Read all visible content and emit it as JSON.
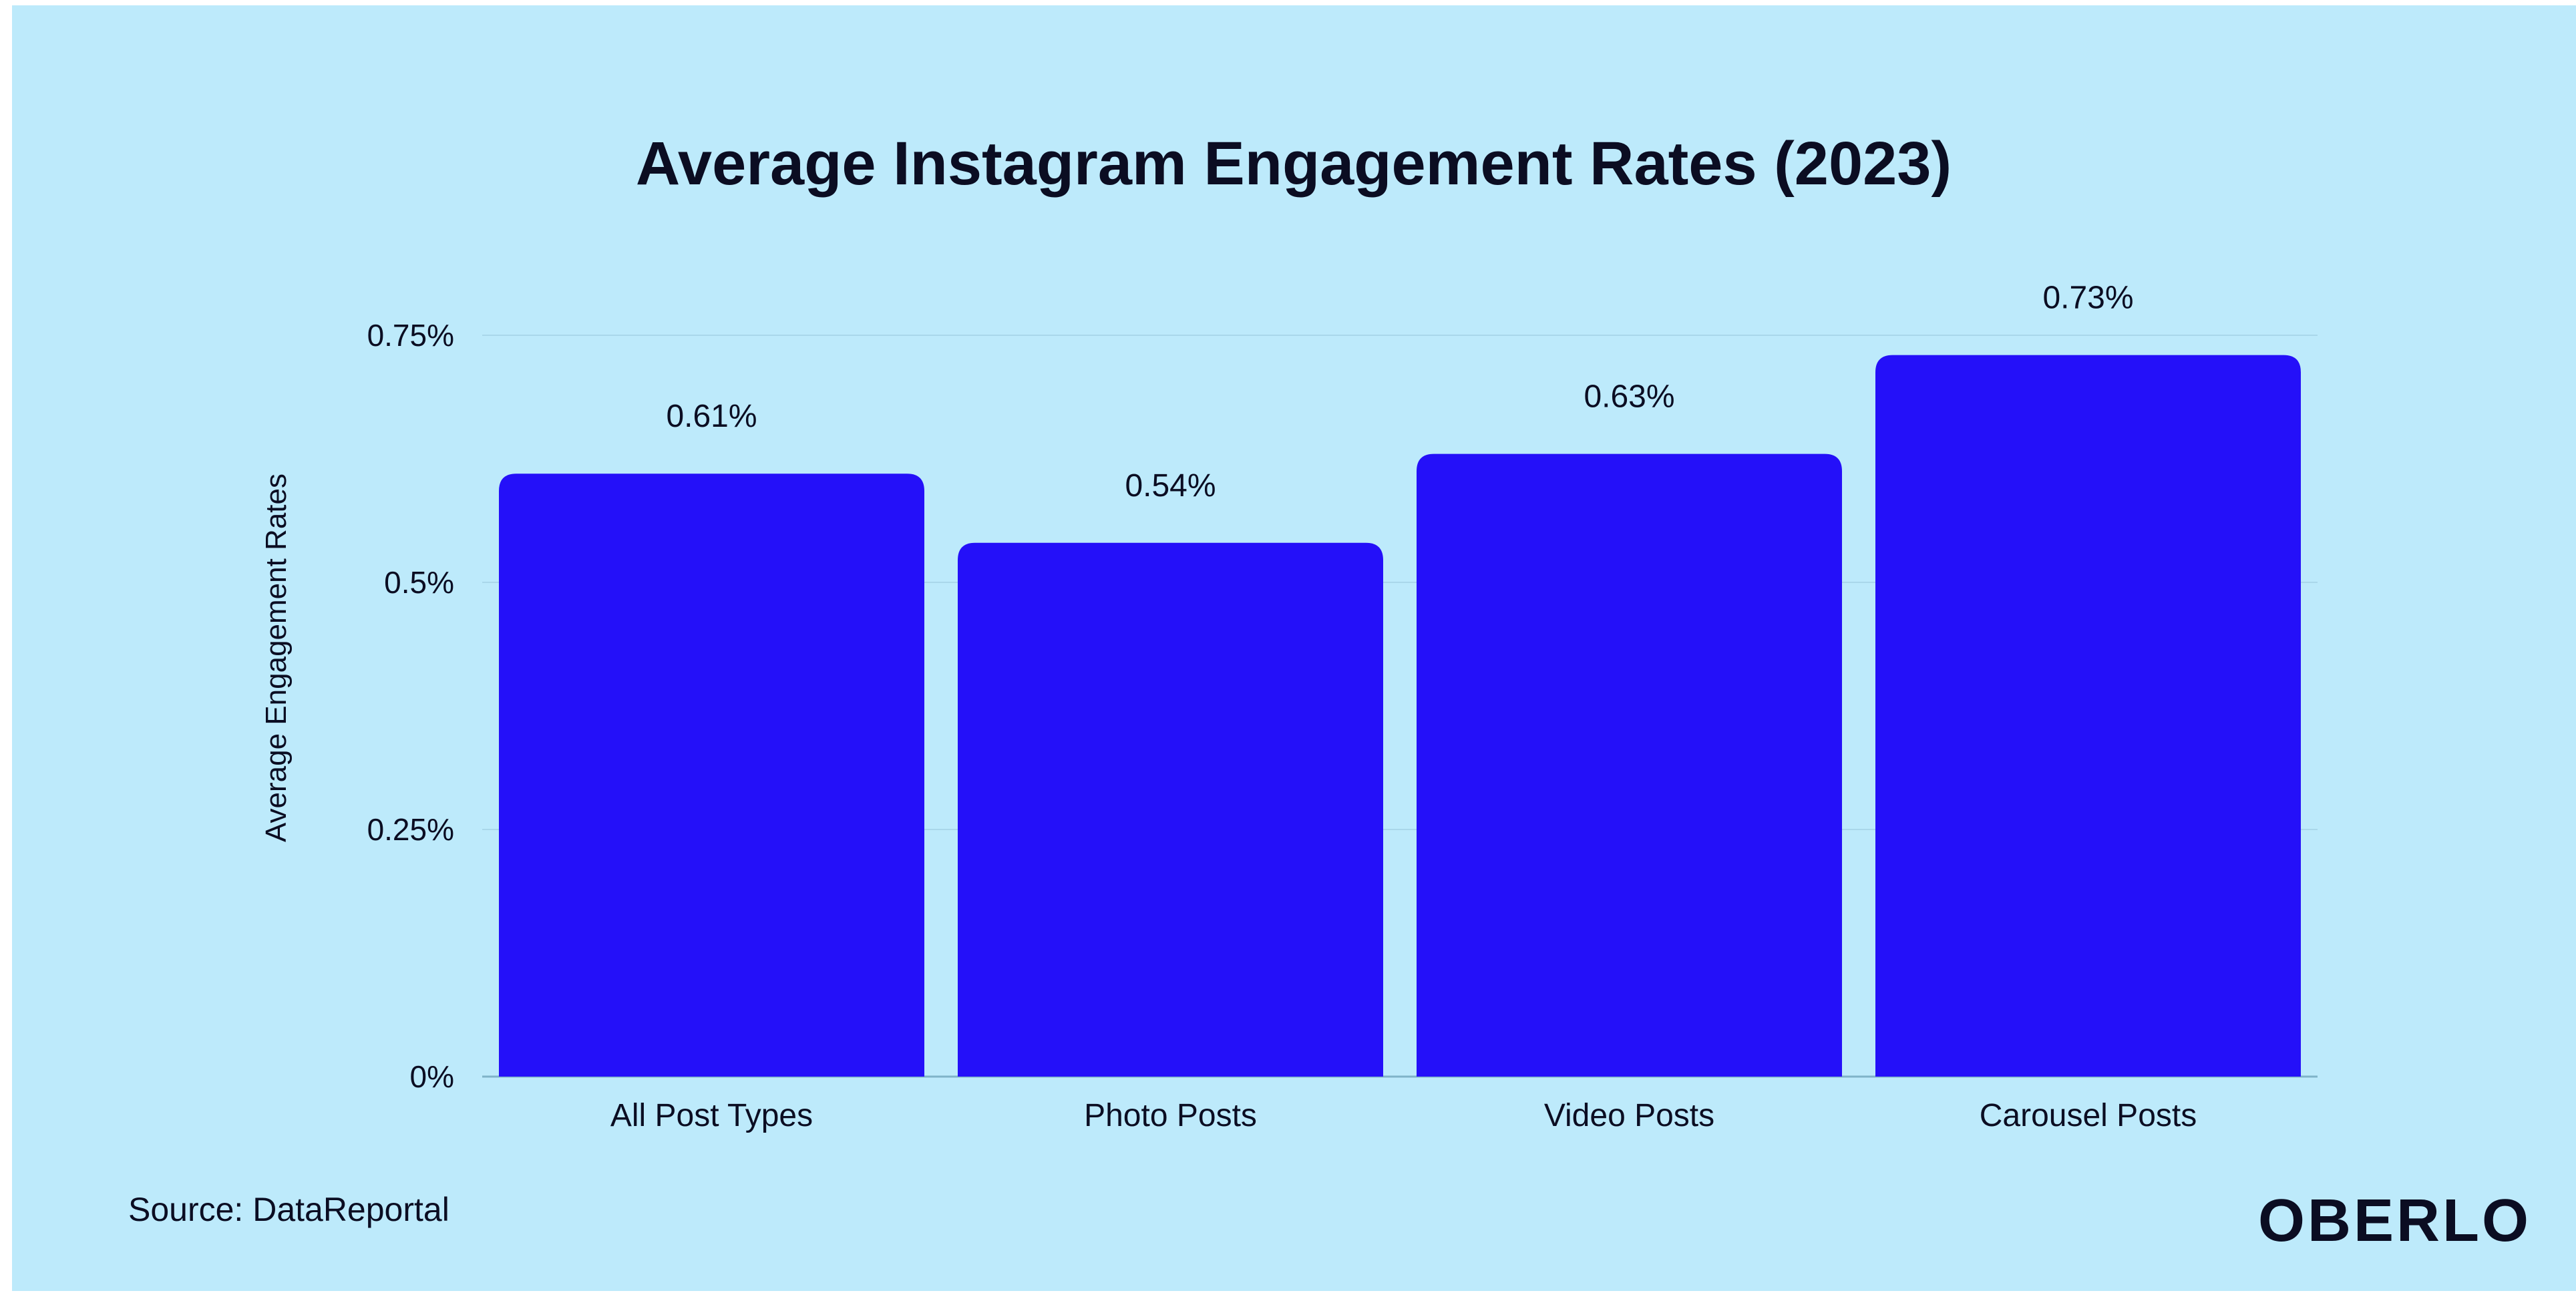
{
  "chart_data": {
    "type": "bar",
    "title": "Average Instagram Engagement Rates (2023)",
    "ylabel": "Average Engagement Rates",
    "xlabel": "",
    "categories": [
      "All Post Types",
      "Photo Posts",
      "Video Posts",
      "Carousel Posts"
    ],
    "values": [
      0.61,
      0.54,
      0.63,
      0.73
    ],
    "value_labels": [
      "0.61%",
      "0.54%",
      "0.63%",
      "0.73%"
    ],
    "ylim": [
      0,
      0.75
    ],
    "yticks": [
      {
        "value": 0,
        "label": "0%"
      },
      {
        "value": 0.25,
        "label": "0.25%"
      },
      {
        "value": 0.5,
        "label": "0.5%"
      },
      {
        "value": 0.75,
        "label": "0.75%"
      }
    ],
    "grid": true,
    "legend": "none"
  },
  "footer": {
    "source": "Source: DataReportal",
    "brand": "OBERLO"
  },
  "colors": {
    "background": "#bdeafb",
    "bar": "#2410f9",
    "text": "#0b0d22",
    "grid": "#a9d7ea"
  }
}
